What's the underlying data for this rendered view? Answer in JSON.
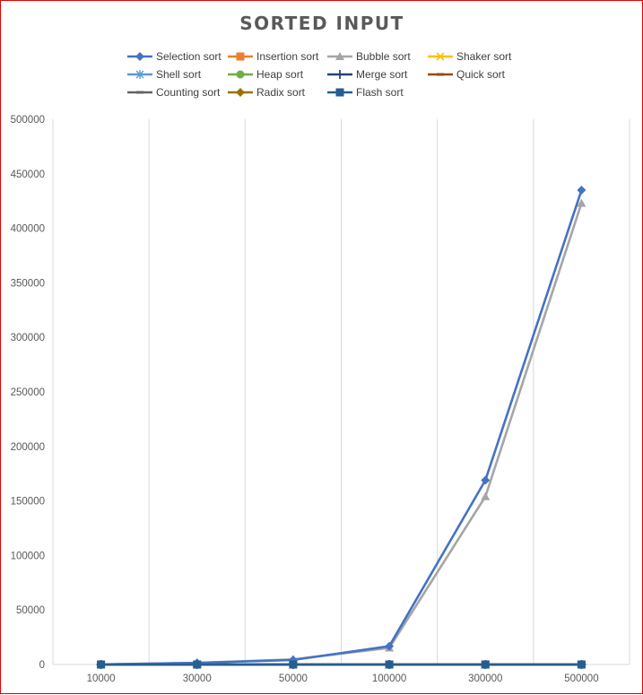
{
  "chart_data": {
    "type": "line",
    "title": "SORTED INPUT",
    "xlabel": "",
    "ylabel": "",
    "categories": [
      "10000",
      "30000",
      "50000",
      "100000",
      "300000",
      "500000"
    ],
    "ylim": [
      0,
      500000
    ],
    "yticks": [
      "0",
      "50000",
      "100000",
      "150000",
      "200000",
      "250000",
      "300000",
      "350000",
      "400000",
      "450000",
      "500000"
    ],
    "grid": "vertical",
    "legend_position": "top",
    "series": [
      {
        "name": "Selection sort",
        "color": "#4472c4",
        "marker": "diamond",
        "values": [
          100,
          1500,
          4200,
          16800,
          169000,
          435000
        ]
      },
      {
        "name": "Insertion sort",
        "color": "#ed7d31",
        "marker": "square",
        "values": [
          0,
          0,
          0,
          0,
          0,
          0
        ]
      },
      {
        "name": "Bubble sort",
        "color": "#a5a5a5",
        "marker": "triangle",
        "values": [
          100,
          1500,
          4700,
          15200,
          154000,
          423000
        ]
      },
      {
        "name": "Shaker sort",
        "color": "#ffc000",
        "marker": "x",
        "values": [
          0,
          0,
          0,
          0,
          0,
          0
        ]
      },
      {
        "name": "Shell sort",
        "color": "#5b9bd5",
        "marker": "star",
        "values": [
          0,
          0,
          0,
          0,
          0,
          0
        ]
      },
      {
        "name": "Heap sort",
        "color": "#70ad47",
        "marker": "circle",
        "values": [
          0,
          0,
          0,
          0,
          0,
          0
        ]
      },
      {
        "name": "Merge sort",
        "color": "#264478",
        "marker": "plus",
        "values": [
          0,
          0,
          0,
          0,
          0,
          0
        ]
      },
      {
        "name": "Quick sort",
        "color": "#9e480e",
        "marker": "dash",
        "values": [
          0,
          0,
          0,
          0,
          0,
          0
        ]
      },
      {
        "name": "Counting sort",
        "color": "#636363",
        "marker": "dash",
        "values": [
          0,
          0,
          0,
          0,
          0,
          0
        ]
      },
      {
        "name": "Radix sort",
        "color": "#997300",
        "marker": "diamond",
        "values": [
          0,
          0,
          0,
          0,
          0,
          0
        ]
      },
      {
        "name": "Flash sort",
        "color": "#255e91",
        "marker": "square",
        "values": [
          0,
          0,
          0,
          0,
          0,
          0
        ]
      }
    ]
  }
}
